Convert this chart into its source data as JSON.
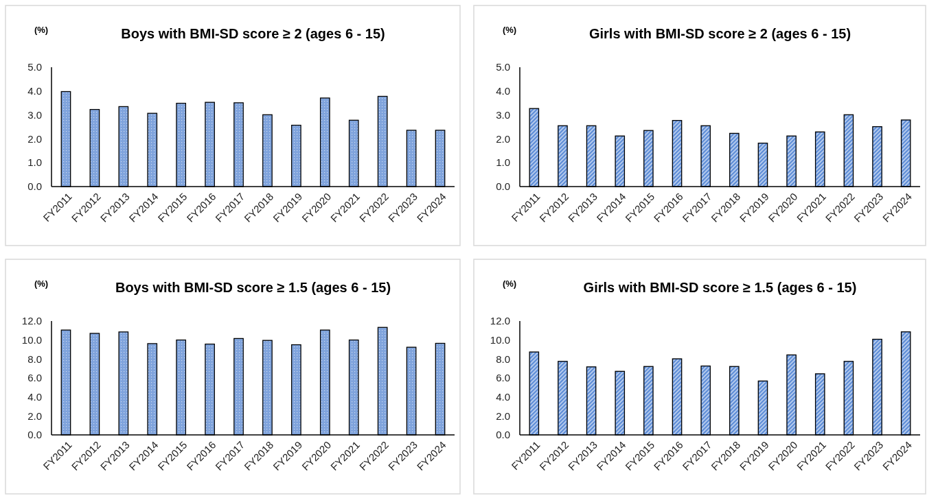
{
  "chart_data": [
    {
      "type": "bar",
      "title": "Boys with BMI-SD score ≥ 2 (ages 6 - 15)",
      "ylabel": "(%)",
      "categories": [
        "FY2011",
        "FY2012",
        "FY2013",
        "FY2014",
        "FY2015",
        "FY2016",
        "FY2017",
        "FY2018",
        "FY2019",
        "FY2020",
        "FY2021",
        "FY2022",
        "FY2023",
        "FY2024"
      ],
      "values": [
        3.98,
        3.23,
        3.35,
        3.07,
        3.49,
        3.53,
        3.51,
        3.01,
        2.57,
        3.71,
        2.78,
        3.78,
        2.36,
        2.36
      ],
      "color": "#7fa3dc",
      "ylim": [
        0,
        5
      ],
      "yticks": [
        {
          "value": 0,
          "label": "0.0"
        },
        {
          "value": 1,
          "label": "1.0"
        },
        {
          "value": 2,
          "label": "2.0"
        },
        {
          "value": 3,
          "label": "3.0"
        },
        {
          "value": 4,
          "label": "4.0"
        },
        {
          "value": 5,
          "label": "5.0"
        }
      ],
      "grid": false
    },
    {
      "type": "bar",
      "title": "Girls with BMI-SD score ≥ 2 (ages 6 - 15)",
      "ylabel": "(%)",
      "categories": [
        "FY2011",
        "FY2012",
        "FY2013",
        "FY2014",
        "FY2015",
        "FY2016",
        "FY2017",
        "FY2018",
        "FY2019",
        "FY2020",
        "FY2021",
        "FY2022",
        "FY2023",
        "FY2024"
      ],
      "values": [
        3.27,
        2.55,
        2.55,
        2.12,
        2.35,
        2.77,
        2.55,
        2.23,
        1.82,
        2.12,
        2.29,
        3.01,
        2.51,
        2.79
      ],
      "color": "#5b8bd6",
      "ylim": [
        0,
        5
      ],
      "yticks": [
        {
          "value": 0,
          "label": "0.0"
        },
        {
          "value": 1,
          "label": "1.0"
        },
        {
          "value": 2,
          "label": "2.0"
        },
        {
          "value": 3,
          "label": "3.0"
        },
        {
          "value": 4,
          "label": "4.0"
        },
        {
          "value": 5,
          "label": "5.0"
        }
      ],
      "grid": false
    },
    {
      "type": "bar",
      "title": "Boys with BMI-SD score ≥ 1.5 (ages 6 - 15)",
      "ylabel": "(%)",
      "categories": [
        "FY2011",
        "FY2012",
        "FY2013",
        "FY2014",
        "FY2015",
        "FY2016",
        "FY2017",
        "FY2018",
        "FY2019",
        "FY2020",
        "FY2021",
        "FY2022",
        "FY2023",
        "FY2024"
      ],
      "values": [
        11.05,
        10.7,
        10.85,
        9.62,
        10.0,
        9.57,
        10.16,
        9.96,
        9.5,
        11.05,
        10.0,
        11.33,
        9.24,
        9.65
      ],
      "color": "#7fa3dc",
      "ylim": [
        0,
        12
      ],
      "yticks": [
        {
          "value": 0,
          "label": "0.0"
        },
        {
          "value": 2,
          "label": "2.0"
        },
        {
          "value": 4,
          "label": "4.0"
        },
        {
          "value": 6,
          "label": "6.0"
        },
        {
          "value": 8,
          "label": "8.0"
        },
        {
          "value": 10,
          "label": "10.0"
        },
        {
          "value": 12,
          "label": "12.0"
        }
      ],
      "grid": false
    },
    {
      "type": "bar",
      "title": "Girls with BMI-SD score ≥ 1.5 (ages 6 - 15)",
      "ylabel": "(%)",
      "categories": [
        "FY2011",
        "FY2012",
        "FY2013",
        "FY2014",
        "FY2015",
        "FY2016",
        "FY2017",
        "FY2018",
        "FY2019",
        "FY2020",
        "FY2021",
        "FY2022",
        "FY2023",
        "FY2024"
      ],
      "values": [
        8.74,
        7.75,
        7.17,
        6.7,
        7.21,
        8.02,
        7.26,
        7.21,
        5.68,
        8.43,
        6.44,
        7.75,
        10.08,
        10.86
      ],
      "color": "#5b8bd6",
      "ylim": [
        0,
        12
      ],
      "yticks": [
        {
          "value": 0,
          "label": "0.0"
        },
        {
          "value": 2,
          "label": "2.0"
        },
        {
          "value": 4,
          "label": "4.0"
        },
        {
          "value": 6,
          "label": "6.0"
        },
        {
          "value": 8,
          "label": "8.0"
        },
        {
          "value": 10,
          "label": "10.0"
        },
        {
          "value": 12,
          "label": "12.0"
        }
      ],
      "grid": false
    }
  ]
}
